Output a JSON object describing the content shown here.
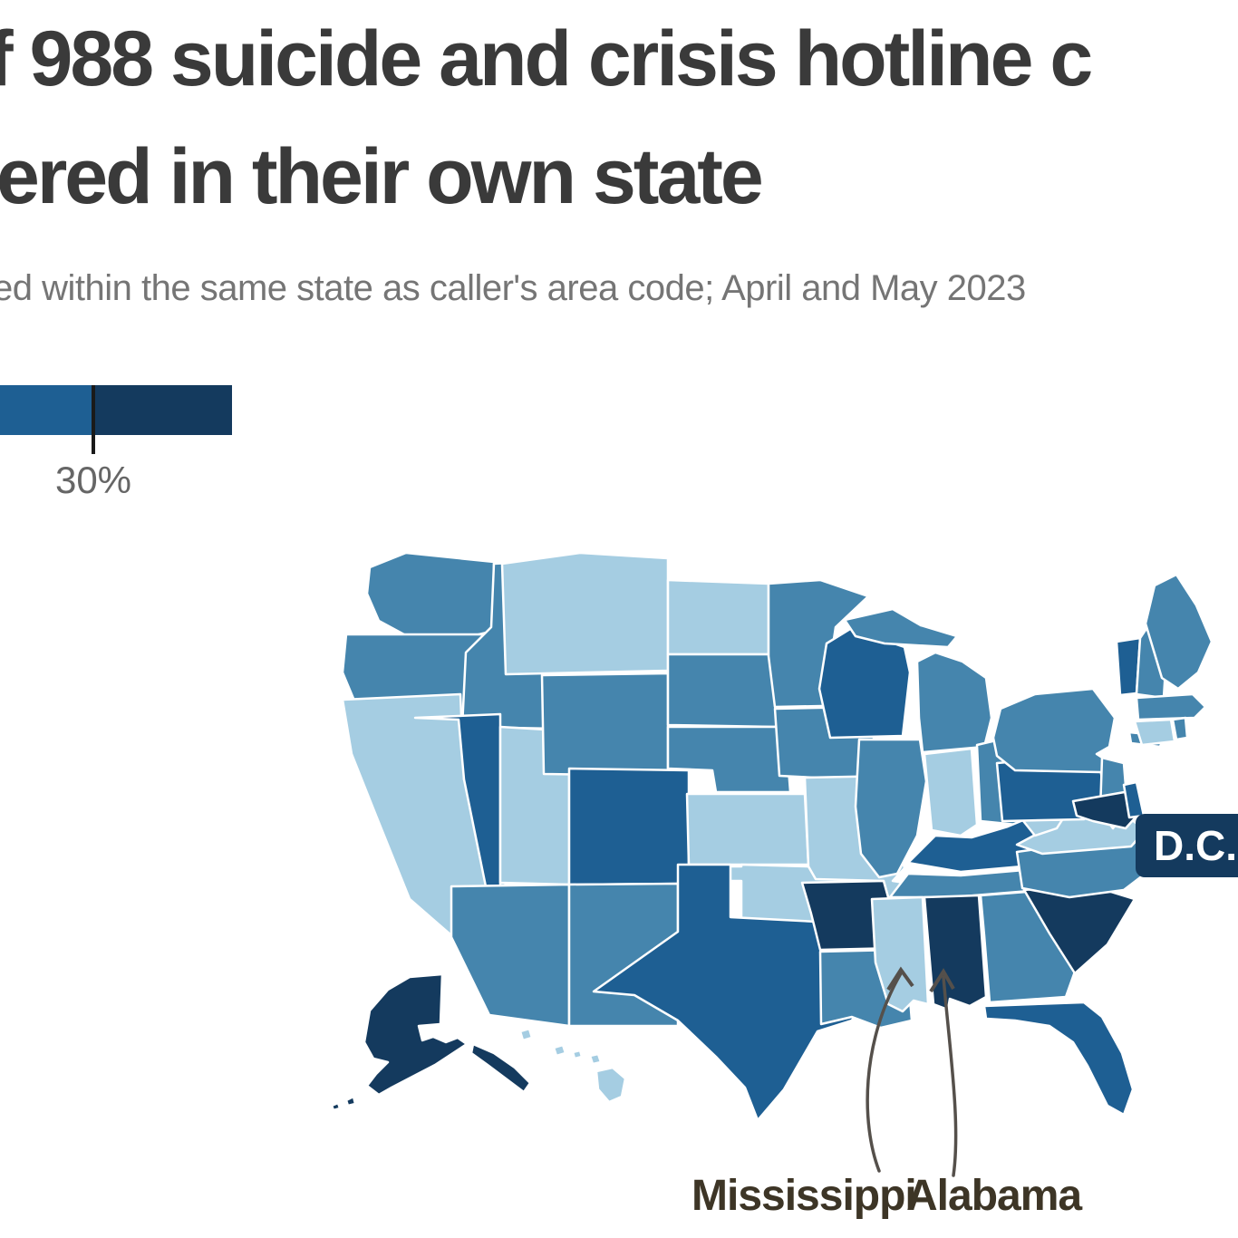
{
  "header": {
    "title_line1": "f 988 suicide and crisis hotline c",
    "title_line2": "ered in their own state",
    "subtitle": "ed within the same state as caller's area code; April and May 2023"
  },
  "legend": {
    "tick_label": "30%",
    "segments": [
      {
        "name": "dark",
        "color": "#1e5f93",
        "width": 104
      },
      {
        "name": "navy",
        "color": "#143a5e",
        "width": 152
      }
    ]
  },
  "map": {
    "dc_badge": "D.C.",
    "annotations": [
      {
        "label": "Mississippi",
        "target_state": "MS"
      },
      {
        "label": "Alabama",
        "target_state": "AL"
      }
    ]
  },
  "colors": {
    "lightest": "#a5cde2",
    "medium": "#4585ad",
    "dark": "#1e5f93",
    "navy": "#143a5e",
    "arrow": "#55504b",
    "title": "#3a3a3a",
    "subtitle": "#757575",
    "annotation": "#3d3526"
  },
  "chart_data": {
    "type": "heatmap",
    "subtype": "us-state-choropleth",
    "title_visible": "f 988 suicide and crisis hotline c / ered in their own state",
    "subtitle_visible": "ed within the same state as caller's area code; April and May 2023",
    "legend": {
      "visible_tick_label": "30%",
      "visible_segment_colors": [
        "#1e5f93",
        "#143a5e"
      ]
    },
    "color_levels": {
      "lightest": "#a5cde2",
      "medium": "#4585ad",
      "dark": "#1e5f93",
      "navy": "#143a5e"
    },
    "states": {
      "WA": "medium",
      "OR": "medium",
      "CA": "lightest",
      "NV": "dark",
      "ID": "medium",
      "MT": "lightest",
      "WY": "medium",
      "UT": "lightest",
      "CO": "dark",
      "AZ": "medium",
      "NM": "medium",
      "ND": "lightest",
      "SD": "medium",
      "NE": "medium",
      "KS": "lightest",
      "OK": "lightest",
      "TX": "dark",
      "MN": "medium",
      "IA": "medium",
      "MO": "lightest",
      "AR": "navy",
      "LA": "medium",
      "WI": "dark",
      "IL": "medium",
      "MI": "medium",
      "IN": "lightest",
      "OH": "medium",
      "KY": "dark",
      "TN": "medium",
      "MS": "lightest",
      "AL": "navy",
      "GA": "medium",
      "FL": "dark",
      "SC": "navy",
      "NC": "medium",
      "VA": "lightest",
      "WV": "lightest",
      "MD": "navy",
      "DE": "dark",
      "PA": "dark",
      "NJ": "medium",
      "NY": "medium",
      "CT": "lightest",
      "RI": "medium",
      "MA": "medium",
      "VT": "dark",
      "NH": "medium",
      "ME": "medium",
      "AK": "navy",
      "HI": "lightest",
      "DC": "navy"
    },
    "annotated_states": [
      "Mississippi",
      "Alabama"
    ],
    "dc_label": "D.C."
  }
}
